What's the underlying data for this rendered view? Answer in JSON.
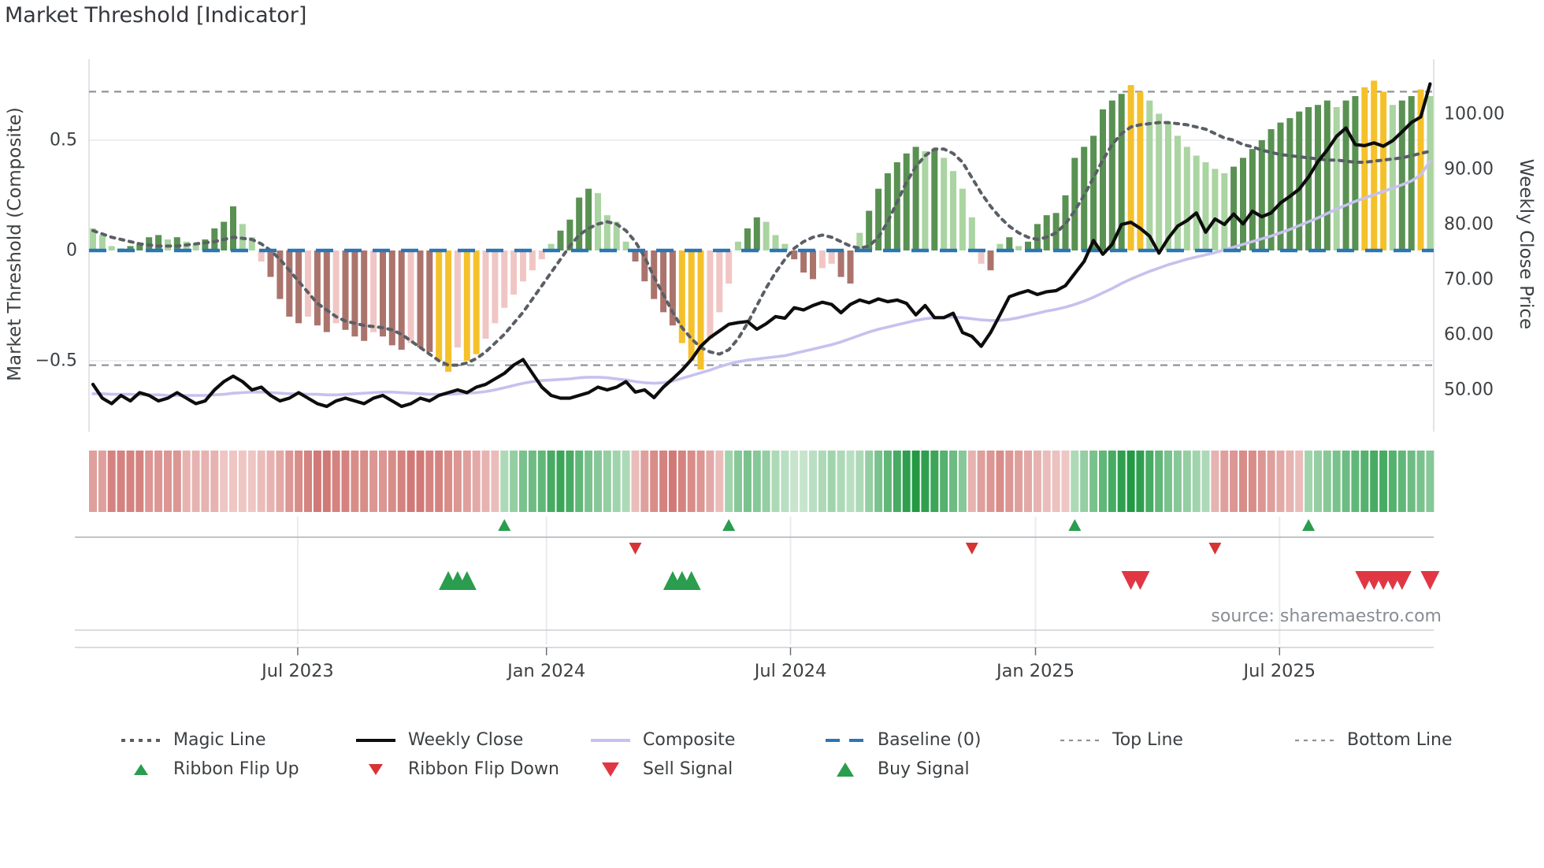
{
  "title": "Market Threshold [Indicator]",
  "source": "source: sharemaestro.com",
  "axes": {
    "left": {
      "label": "Market Threshold (Composite)",
      "tick_labels": [
        "0.5",
        "0",
        "−0.5"
      ],
      "tick_values": [
        0.5,
        0,
        -0.5
      ],
      "range": [
        -0.85,
        0.87
      ]
    },
    "right": {
      "label": "Weekly Close Price",
      "tick_labels": [
        "100.00",
        "90.00",
        "80.00",
        "70.00",
        "60.00",
        "50.00"
      ],
      "tick_values": [
        100,
        90,
        80,
        70,
        60,
        50
      ],
      "range": [
        42.5,
        110
      ]
    },
    "x": {
      "tick_labels": [
        "Jul 2023",
        "Jan 2024",
        "Jul 2024",
        "Jan 2025",
        "Jul 2025"
      ],
      "tick_weeks": [
        21.9,
        48.5,
        74.6,
        100.8,
        126.9
      ]
    }
  },
  "chart_data": {
    "type": "bar+line multi-axis indicator panel",
    "weeks": 144,
    "start_date": "2023-01-29",
    "baseline": 0,
    "top_line": 0.72,
    "bottom_line": -0.52,
    "threshold_bars": [
      0.1,
      0.07,
      0.02,
      0.01,
      0.02,
      0.03,
      0.06,
      0.07,
      0.05,
      0.06,
      0.04,
      0.03,
      0.05,
      0.1,
      0.13,
      0.2,
      0.12,
      0.06,
      -0.05,
      -0.12,
      -0.22,
      -0.3,
      -0.33,
      -0.3,
      -0.34,
      -0.37,
      -0.33,
      -0.36,
      -0.39,
      -0.41,
      -0.37,
      -0.39,
      -0.43,
      -0.45,
      -0.42,
      -0.44,
      -0.46,
      -0.5,
      -0.55,
      -0.44,
      -0.5,
      -0.47,
      -0.4,
      -0.33,
      -0.26,
      -0.2,
      -0.14,
      -0.09,
      -0.04,
      0.03,
      0.09,
      0.14,
      0.24,
      0.28,
      0.26,
      0.16,
      0.13,
      0.04,
      -0.05,
      -0.14,
      -0.22,
      -0.28,
      -0.34,
      -0.42,
      -0.5,
      -0.54,
      -0.4,
      -0.28,
      -0.15,
      0.04,
      0.1,
      0.15,
      0.13,
      0.07,
      0.03,
      -0.04,
      -0.1,
      -0.13,
      -0.08,
      -0.06,
      -0.12,
      -0.15,
      0.08,
      0.18,
      0.28,
      0.35,
      0.4,
      0.44,
      0.47,
      0.45,
      0.46,
      0.42,
      0.36,
      0.28,
      0.15,
      -0.06,
      -0.09,
      0.03,
      0.06,
      0.02,
      0.04,
      0.12,
      0.16,
      0.17,
      0.25,
      0.42,
      0.47,
      0.52,
      0.64,
      0.68,
      0.71,
      0.75,
      0.72,
      0.68,
      0.62,
      0.58,
      0.52,
      0.47,
      0.43,
      0.4,
      0.37,
      0.35,
      0.38,
      0.42,
      0.46,
      0.5,
      0.55,
      0.58,
      0.6,
      0.63,
      0.65,
      0.66,
      0.68,
      0.65,
      0.68,
      0.7,
      0.74,
      0.77,
      0.72,
      0.66,
      0.68,
      0.7,
      0.73,
      0.7
    ],
    "yellow_weeks": [
      37,
      38,
      40,
      41,
      63,
      64,
      65,
      111,
      112,
      136,
      137,
      138,
      142
    ],
    "magic_line": [
      0.09,
      0.075,
      0.06,
      0.05,
      0.04,
      0.03,
      0.025,
      0.02,
      0.02,
      0.02,
      0.025,
      0.03,
      0.035,
      0.04,
      0.05,
      0.06,
      0.055,
      0.05,
      0.03,
      0.0,
      -0.04,
      -0.09,
      -0.14,
      -0.19,
      -0.24,
      -0.27,
      -0.3,
      -0.32,
      -0.33,
      -0.34,
      -0.345,
      -0.35,
      -0.36,
      -0.38,
      -0.41,
      -0.44,
      -0.47,
      -0.5,
      -0.52,
      -0.52,
      -0.51,
      -0.49,
      -0.46,
      -0.42,
      -0.38,
      -0.33,
      -0.28,
      -0.22,
      -0.16,
      -0.1,
      -0.04,
      0.02,
      0.07,
      0.1,
      0.12,
      0.13,
      0.12,
      0.09,
      0.04,
      -0.03,
      -0.12,
      -0.2,
      -0.28,
      -0.35,
      -0.4,
      -0.44,
      -0.46,
      -0.47,
      -0.45,
      -0.4,
      -0.33,
      -0.25,
      -0.17,
      -0.1,
      -0.04,
      0.01,
      0.04,
      0.06,
      0.07,
      0.06,
      0.04,
      0.02,
      0.01,
      0.02,
      0.06,
      0.13,
      0.22,
      0.31,
      0.38,
      0.43,
      0.46,
      0.46,
      0.44,
      0.4,
      0.33,
      0.26,
      0.2,
      0.15,
      0.11,
      0.08,
      0.06,
      0.05,
      0.06,
      0.08,
      0.12,
      0.18,
      0.25,
      0.33,
      0.41,
      0.48,
      0.53,
      0.56,
      0.57,
      0.575,
      0.58,
      0.58,
      0.575,
      0.57,
      0.56,
      0.55,
      0.53,
      0.51,
      0.5,
      0.48,
      0.47,
      0.455,
      0.445,
      0.435,
      0.43,
      0.425,
      0.42,
      0.415,
      0.41,
      0.41,
      0.405,
      0.4,
      0.4,
      0.405,
      0.41,
      0.415,
      0.42,
      0.43,
      0.44,
      0.45
    ],
    "weekly_close": [
      51.0,
      48.5,
      47.5,
      49.0,
      48.0,
      49.5,
      49.0,
      48.0,
      48.5,
      49.5,
      48.5,
      47.5,
      48.0,
      50.0,
      51.5,
      52.5,
      51.5,
      50.0,
      50.5,
      49.0,
      48.0,
      48.5,
      49.5,
      48.5,
      47.5,
      47.0,
      48.0,
      48.5,
      48.0,
      47.5,
      48.5,
      49.0,
      48.0,
      47.0,
      47.5,
      48.5,
      48.0,
      49.0,
      49.5,
      50.0,
      49.5,
      50.5,
      51.0,
      52.0,
      53.0,
      54.5,
      55.5,
      53.0,
      50.5,
      49.0,
      48.5,
      48.5,
      49.0,
      49.5,
      50.5,
      50.0,
      50.5,
      51.5,
      49.6,
      50.0,
      48.6,
      50.5,
      52.0,
      53.6,
      55.5,
      57.9,
      59.5,
      60.7,
      61.9,
      62.2,
      62.4,
      61.0,
      62.0,
      63.3,
      63.0,
      64.9,
      64.5,
      65.3,
      65.9,
      65.5,
      64.0,
      65.5,
      66.3,
      65.8,
      66.5,
      66.0,
      66.3,
      65.7,
      63.6,
      65.3,
      63.1,
      63.1,
      63.9,
      60.4,
      59.7,
      57.9,
      60.4,
      63.6,
      66.9,
      67.5,
      68.0,
      67.3,
      67.8,
      68.0,
      68.9,
      71.1,
      73.3,
      77.1,
      74.6,
      76.4,
      80.0,
      80.4,
      79.3,
      77.9,
      74.8,
      77.5,
      79.7,
      80.7,
      82.1,
      78.6,
      81.0,
      80.0,
      81.9,
      80.1,
      82.4,
      81.4,
      82.1,
      83.9,
      85.1,
      86.4,
      88.6,
      91.4,
      93.5,
      96.0,
      97.5,
      94.5,
      94.3,
      94.8,
      94.2,
      95.2,
      96.8,
      98.5,
      99.5,
      105.5
    ],
    "composite_line": [
      49.3,
      49.3,
      49.2,
      49.2,
      49.2,
      49.1,
      49.1,
      49.1,
      49.0,
      49.0,
      49.0,
      49.0,
      49.0,
      49.1,
      49.2,
      49.4,
      49.5,
      49.6,
      49.6,
      49.5,
      49.4,
      49.3,
      49.3,
      49.2,
      49.2,
      49.1,
      49.1,
      49.2,
      49.3,
      49.4,
      49.5,
      49.6,
      49.6,
      49.5,
      49.4,
      49.3,
      49.2,
      49.2,
      49.2,
      49.3,
      49.4,
      49.5,
      49.7,
      50.0,
      50.4,
      50.8,
      51.2,
      51.5,
      51.7,
      51.8,
      51.9,
      52.0,
      52.2,
      52.3,
      52.3,
      52.2,
      52.0,
      51.8,
      51.5,
      51.3,
      51.2,
      51.3,
      51.6,
      52.1,
      52.6,
      53.1,
      53.6,
      54.2,
      54.7,
      55.1,
      55.4,
      55.6,
      55.8,
      56.0,
      56.2,
      56.6,
      57.0,
      57.4,
      57.8,
      58.2,
      58.7,
      59.3,
      59.9,
      60.5,
      61.0,
      61.4,
      61.8,
      62.2,
      62.6,
      62.9,
      63.1,
      63.2,
      63.2,
      63.1,
      62.9,
      62.7,
      62.6,
      62.6,
      62.8,
      63.1,
      63.5,
      63.9,
      64.3,
      64.6,
      65.0,
      65.5,
      66.1,
      66.8,
      67.6,
      68.4,
      69.3,
      70.1,
      70.8,
      71.5,
      72.1,
      72.7,
      73.2,
      73.7,
      74.1,
      74.5,
      74.9,
      75.4,
      75.9,
      76.4,
      76.9,
      77.4,
      77.9,
      78.5,
      79.1,
      79.8,
      80.5,
      81.2,
      82.0,
      82.8,
      83.5,
      84.2,
      84.8,
      85.4,
      86.0,
      86.6,
      87.2,
      87.9,
      89.0,
      91.5
    ],
    "ribbon": [
      -0.45,
      -0.45,
      -0.6,
      -0.6,
      -0.6,
      -0.6,
      -0.5,
      -0.5,
      -0.5,
      -0.5,
      -0.35,
      -0.35,
      -0.35,
      -0.35,
      -0.25,
      -0.25,
      -0.25,
      -0.25,
      -0.3,
      -0.35,
      -0.4,
      -0.5,
      -0.55,
      -0.6,
      -0.65,
      -0.65,
      -0.6,
      -0.6,
      -0.55,
      -0.55,
      -0.5,
      -0.5,
      -0.55,
      -0.6,
      -0.65,
      -0.65,
      -0.6,
      -0.6,
      -0.55,
      -0.5,
      -0.45,
      -0.4,
      -0.35,
      -0.3,
      0.3,
      0.4,
      0.5,
      0.55,
      0.6,
      0.7,
      0.75,
      0.7,
      0.6,
      0.5,
      0.45,
      0.4,
      0.35,
      0.3,
      -0.3,
      -0.45,
      -0.55,
      -0.6,
      -0.65,
      -0.6,
      -0.55,
      -0.5,
      -0.4,
      -0.3,
      0.35,
      0.45,
      0.5,
      0.45,
      0.4,
      0.3,
      0.25,
      0.2,
      0.2,
      0.25,
      0.3,
      0.35,
      0.3,
      0.25,
      0.3,
      0.4,
      0.5,
      0.6,
      0.7,
      0.8,
      0.85,
      0.8,
      0.75,
      0.65,
      0.55,
      0.45,
      -0.35,
      -0.45,
      -0.5,
      -0.55,
      -0.5,
      -0.45,
      -0.4,
      -0.35,
      -0.3,
      -0.28,
      -0.25,
      0.3,
      0.4,
      0.5,
      0.6,
      0.7,
      0.8,
      0.85,
      0.8,
      0.7,
      0.6,
      0.5,
      0.45,
      0.4,
      0.35,
      0.3,
      -0.35,
      -0.45,
      -0.5,
      -0.55,
      -0.55,
      -0.5,
      -0.45,
      -0.4,
      -0.35,
      -0.3,
      0.35,
      0.4,
      0.45,
      0.5,
      0.55,
      0.6,
      0.65,
      0.7,
      0.7,
      0.65,
      0.6,
      0.55,
      0.5,
      0.45
    ],
    "signals": {
      "ribbon_flip_up_weeks": [
        44,
        68,
        105,
        130
      ],
      "ribbon_flip_down_weeks": [
        58,
        94,
        120
      ],
      "buy_signal_weeks": [
        38,
        39,
        40,
        62,
        63,
        64
      ],
      "sell_signal_weeks": [
        111,
        112,
        136,
        137,
        138,
        139,
        140,
        143
      ]
    }
  },
  "colors": {
    "bar_green_dark": "#599152",
    "bar_green_light": "#aad4a1",
    "bar_red_dark": "#aa746d",
    "bar_red_light": "#f0c6c4",
    "bar_yellow": "#f5c12b",
    "weekly_close": "#0d0d0d",
    "composite": "#c6c1ee",
    "magic": "#5a5f66",
    "baseline": "#2a76b5",
    "threshold_dashed": "#8f9499",
    "flip_up": "#2a9d4e",
    "flip_down": "#d63434",
    "buy": "#2a9d4e",
    "sell": "#e13744",
    "grid": "#ebebf0",
    "spine": "#d9dbe0",
    "axis_text": "#3c4043"
  },
  "legend": {
    "items": [
      {
        "label": "Magic Line",
        "swatch": "dotted-line",
        "color": "#5a5f66",
        "size": "line"
      },
      {
        "label": "Weekly Close",
        "swatch": "solid-line",
        "color": "#0d0d0d",
        "size": "line"
      },
      {
        "label": "Composite",
        "swatch": "solid-line",
        "color": "#c6c1ee",
        "size": "line"
      },
      {
        "label": "Baseline (0)",
        "swatch": "dashed-line",
        "color": "#2a76b5",
        "size": "line"
      },
      {
        "label": "Top Line",
        "swatch": "fine-dashed-line",
        "color": "#8f9499",
        "size": "line"
      },
      {
        "label": "Bottom Line",
        "swatch": "fine-dashed-line",
        "color": "#8f9499",
        "size": "line"
      },
      {
        "label": "Ribbon Flip Up",
        "swatch": "triangle-up",
        "color": "#2a9d4e",
        "size": "small"
      },
      {
        "label": "Ribbon Flip Down",
        "swatch": "triangle-down",
        "color": "#d63434",
        "size": "small"
      },
      {
        "label": "Sell Signal",
        "swatch": "triangle-down",
        "color": "#e13744",
        "size": "large"
      },
      {
        "label": "Buy Signal",
        "swatch": "triangle-up",
        "color": "#2a9d4e",
        "size": "large"
      }
    ]
  }
}
